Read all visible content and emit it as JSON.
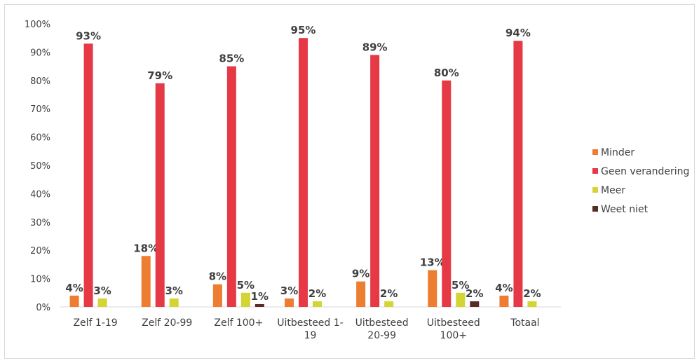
{
  "chart_data": {
    "type": "bar",
    "categories": [
      [
        "Zelf 1-19"
      ],
      [
        "Zelf 20-99"
      ],
      [
        "Zelf 100+"
      ],
      [
        "Uitbesteed 1-",
        "19"
      ],
      [
        "Uitbesteed",
        "20-99"
      ],
      [
        "Uitbesteed",
        "100+"
      ],
      [
        "Totaal"
      ]
    ],
    "series": [
      {
        "name": "Minder",
        "color": "#ed7d31",
        "values": [
          4,
          18,
          8,
          3,
          9,
          13,
          4
        ],
        "labels": [
          "4%",
          "18%",
          "8%",
          "3%",
          "9%",
          "13%",
          "4%"
        ]
      },
      {
        "name": "Geen verandering",
        "color": "#e63946",
        "values": [
          93,
          79,
          85,
          95,
          89,
          80,
          94
        ],
        "labels": [
          "93%",
          "79%",
          "85%",
          "95%",
          "89%",
          "80%",
          "94%"
        ]
      },
      {
        "name": "Meer",
        "color": "#d4d435",
        "values": [
          3,
          3,
          5,
          2,
          2,
          5,
          2
        ],
        "labels": [
          "3%",
          "3%",
          "5%",
          "2%",
          "2%",
          "5%",
          "2%"
        ]
      },
      {
        "name": "Weet niet",
        "color": "#5a2a2a",
        "values": [
          0,
          0,
          1,
          0,
          0,
          2,
          0
        ],
        "labels": [
          "",
          "",
          "1%",
          "",
          "",
          "2%",
          ""
        ]
      }
    ],
    "ylim": [
      0,
      100
    ],
    "yticks": [
      "0%",
      "10%",
      "20%",
      "30%",
      "40%",
      "50%",
      "60%",
      "70%",
      "80%",
      "90%",
      "100%"
    ],
    "grid": false,
    "legend_position": "right"
  }
}
